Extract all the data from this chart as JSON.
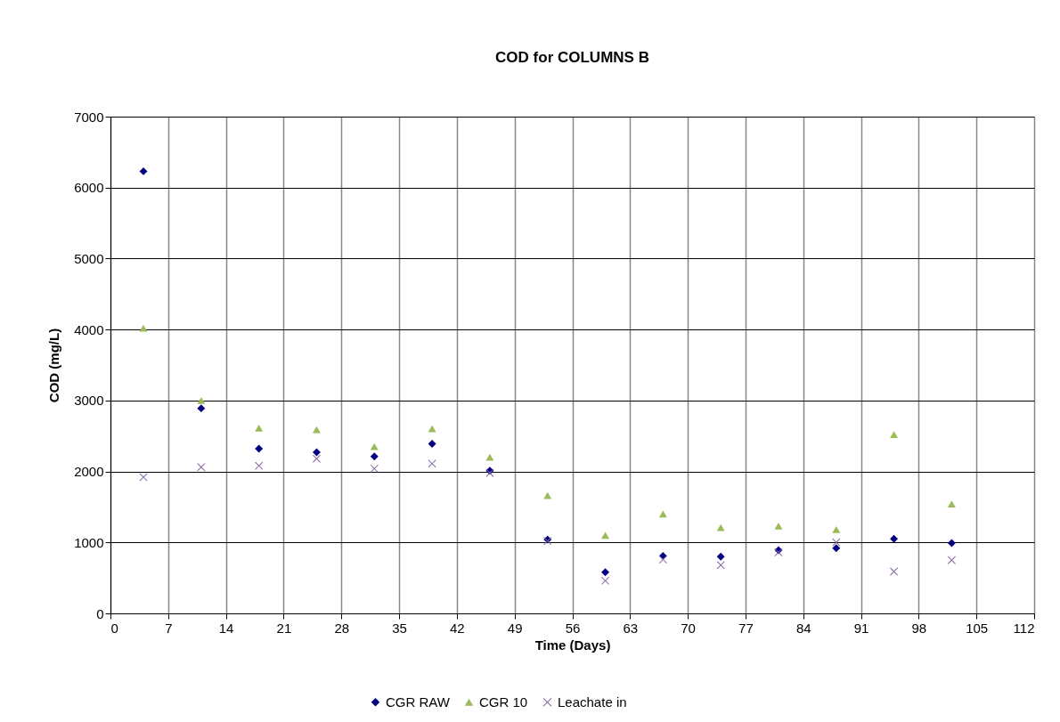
{
  "chart_data": {
    "type": "scatter",
    "title": "COD for COLUMNS B",
    "xlabel": "Time (Days)",
    "ylabel": "COD (mg/L)",
    "x": [
      4,
      11,
      18,
      25,
      32,
      39,
      46,
      53,
      60,
      67,
      74,
      81,
      88,
      95,
      102
    ],
    "series": [
      {
        "name": "CGR RAW",
        "color": "#000080",
        "marker": "diamond",
        "values": [
          6230,
          2890,
          2320,
          2270,
          2210,
          2390,
          2010,
          1040,
          580,
          810,
          800,
          890,
          920,
          1050,
          990
        ]
      },
      {
        "name": "CGR 10",
        "color": "#9bbb59",
        "marker": "triangle",
        "values": [
          4020,
          3000,
          2610,
          2590,
          2350,
          2600,
          2200,
          1660,
          1100,
          1400,
          1210,
          1230,
          1180,
          2520,
          1540
        ]
      },
      {
        "name": "Leachate in",
        "color": "#8064a2",
        "marker": "cross",
        "values": [
          1920,
          2060,
          2080,
          2180,
          2040,
          2110,
          1980,
          1020,
          460,
          760,
          680,
          860,
          1000,
          590,
          750
        ]
      }
    ],
    "xlim": [
      0,
      112
    ],
    "xticks": [
      0,
      7,
      14,
      21,
      28,
      35,
      42,
      49,
      56,
      63,
      70,
      77,
      84,
      91,
      98,
      105,
      112
    ],
    "ylim": [
      0,
      7000
    ],
    "yticks": [
      0,
      1000,
      2000,
      3000,
      4000,
      5000,
      6000,
      7000
    ],
    "grid": true,
    "legend": "bottom"
  }
}
